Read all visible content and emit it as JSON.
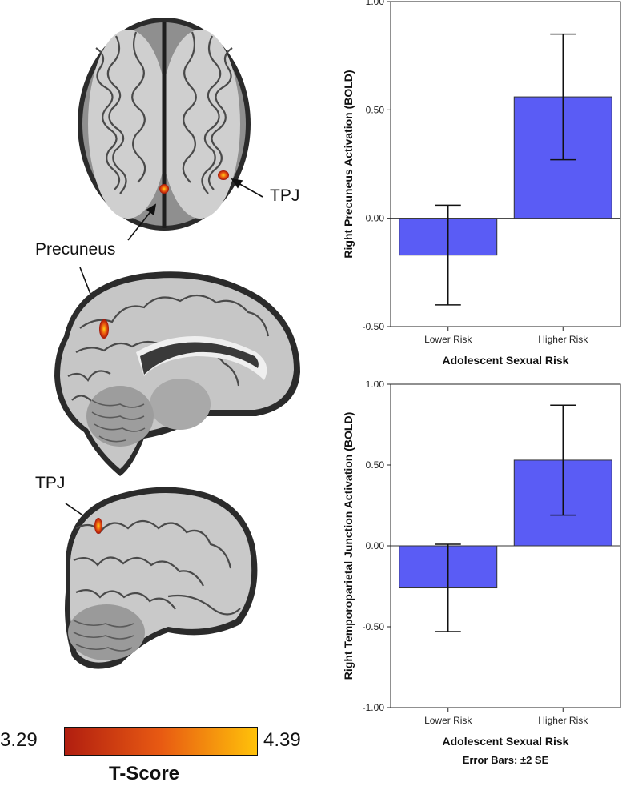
{
  "figure": {
    "labels": {
      "tpj_axial": "TPJ",
      "precuneus": "Precuneus",
      "tpj_sagittal": "TPJ"
    },
    "colorbar": {
      "min_label": "3.29",
      "max_label": "4.39",
      "title": "T-Score",
      "colors": [
        "#b11e10",
        "#e85a12",
        "#ffc20a"
      ]
    }
  },
  "chart_data": [
    {
      "type": "bar",
      "categories": [
        "Lower Risk",
        "Higher Risk"
      ],
      "values": [
        -0.17,
        0.56
      ],
      "error_low": [
        -0.4,
        0.27
      ],
      "error_high": [
        0.06,
        0.85
      ],
      "ylim": [
        -0.5,
        1.0
      ],
      "yticks": [
        -0.5,
        0.0,
        0.5,
        1.0
      ],
      "ytick_labels": [
        "-0.50",
        "0.00",
        "0.50",
        "1.00"
      ],
      "ylabel": "Right Precuneus Activation (BOLD)",
      "xlabel": "Adolescent Sexual Risk",
      "note": "",
      "bar_color": "#5a5cf5"
    },
    {
      "type": "bar",
      "categories": [
        "Lower Risk",
        "Higher Risk"
      ],
      "values": [
        -0.26,
        0.53
      ],
      "error_low": [
        -0.53,
        0.19
      ],
      "error_high": [
        0.01,
        0.87
      ],
      "ylim": [
        -1.0,
        1.0
      ],
      "yticks": [
        -1.0,
        -0.5,
        0.0,
        0.5,
        1.0
      ],
      "ytick_labels": [
        "-1.00",
        "-0.50",
        "0.00",
        "0.50",
        "1.00"
      ],
      "ylabel": "Right Temporoparietal Junction Activation (BOLD)",
      "xlabel": "Adolescent Sexual Risk",
      "note": "Error Bars: ±2 SE",
      "bar_color": "#5a5cf5"
    }
  ]
}
